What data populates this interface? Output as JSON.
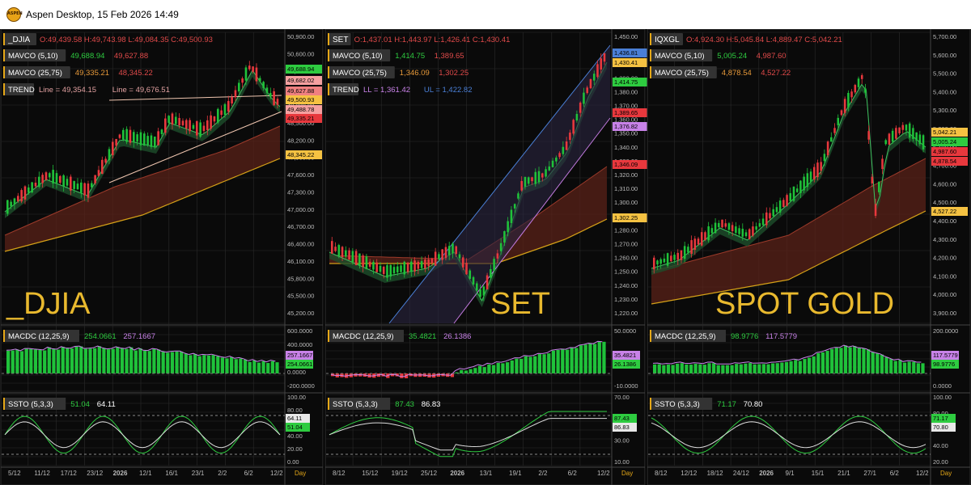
{
  "window": {
    "title": "Aspen Desktop, 15 Feb 2026 14:49",
    "logo_text": "ASPEN"
  },
  "colors": {
    "up": "#1fc23a",
    "down": "#e8383d",
    "fast": "#2ecc40",
    "slow": "#d9822b",
    "signal": "#c882e8",
    "grid": "#2b2b2b"
  },
  "x_axis_unit": "Day",
  "panels": [
    {
      "symbol": "_DJIA",
      "watermark": "_DJIA",
      "ohlc": "O:49,439.58 H:49,743.98 L:49,084.35 C:49,500.93",
      "indicators": [
        {
          "label": "MAVCO (5,10)",
          "v1": "49,688.94",
          "v2": "49,627.88"
        },
        {
          "label": "MAVCO (25,75)",
          "v1": "49,335.21",
          "v2": "48,345.22"
        },
        {
          "label": "TREND",
          "v1": "Line = 49,354.15",
          "v2": "Line = 49,676.51"
        }
      ],
      "price_ticks": [
        "50,900.00",
        "50,600.00",
        "50,300.00",
        "49,100.00",
        "48,800.00",
        "48,500.00",
        "48,200.00",
        "47,900.00",
        "47,600.00",
        "47,300.00",
        "47,000.00",
        "46,700.00",
        "46,400.00",
        "46,100.00",
        "45,800.00",
        "45,500.00",
        "45,200.00"
      ],
      "price_tags": [
        "49,688.94",
        "49,682.02",
        "49,627.88",
        "49,500.93",
        "49,488.78",
        "49,335.21",
        "48,345.22"
      ],
      "macd": {
        "label": "MACDC (12,25,9)",
        "v1": "254.0661",
        "v2": "257.1667",
        "ticks": [
          "600.0000",
          "400.0000",
          "200.0000",
          "0.0000",
          "-200.0000"
        ],
        "tags": [
          "257.1667",
          "254.0661"
        ]
      },
      "ssto": {
        "label": "SSTO (5,3,3)",
        "v1": "51.04",
        "v2": "64.11",
        "ticks": [
          "100.00",
          "80.00",
          "60.00",
          "40.00",
          "20.00",
          "0.00"
        ],
        "tags": [
          "64.11",
          "51.04"
        ]
      },
      "dates": [
        "5/12",
        "11/12",
        "17/12",
        "23/12",
        "2026",
        "12/1",
        "16/1",
        "23/1",
        "2/2",
        "6/2",
        "12/2"
      ]
    },
    {
      "symbol": "SET",
      "watermark": "SET",
      "ohlc": "O:1,437.01 H:1,443.97 L:1,426.41 C:1,430.41",
      "indicators": [
        {
          "label": "MAVCO (5,10)",
          "v1": "1,414.75",
          "v2": "1,389.65"
        },
        {
          "label": "MAVCO (25,75)",
          "v1": "1,346.09",
          "v2": "1,302.25"
        },
        {
          "label": "TREND",
          "v1": "LL = 1,361.42",
          "v2": "UL = 1,422.82"
        }
      ],
      "price_ticks": [
        "1,450.00",
        "1,440.00",
        "1,400.00",
        "1,390.00",
        "1,380.00",
        "1,370.00",
        "1,360.00",
        "1,350.00",
        "1,340.00",
        "1,330.00",
        "1,320.00",
        "1,310.00",
        "1,300.00",
        "1,290.00",
        "1,280.00",
        "1,270.00",
        "1,260.00",
        "1,250.00",
        "1,240.00",
        "1,230.00",
        "1,220.00"
      ],
      "price_tags": [
        "1,436.81",
        "1,430.41",
        "1,414.75",
        "1,389.65",
        "1,376.82",
        "1,346.09",
        "1,302.25"
      ],
      "macd": {
        "label": "MACDC (12,25,9)",
        "v1": "35.4821",
        "v2": "26.1386",
        "ticks": [
          "50.0000",
          "10.0000",
          "-10.0000"
        ],
        "tags": [
          "35.4821",
          "26.1386"
        ]
      },
      "ssto": {
        "label": "SSTO (5,3,3)",
        "v1": "87.43",
        "v2": "86.83",
        "ticks": [
          "70.00",
          "50.00",
          "30.00",
          "10.00"
        ],
        "tags": [
          "87.43",
          "86.83"
        ]
      },
      "dates": [
        "8/12",
        "15/12",
        "19/12",
        "25/12",
        "2026",
        "13/1",
        "19/1",
        "2/2",
        "6/2",
        "12/2"
      ]
    },
    {
      "symbol": "IQXGL",
      "watermark": "SPOT GOLD",
      "ohlc": "O:4,924.30 H:5,045.84 L:4,889.47 C:5,042.21",
      "indicators": [
        {
          "label": "MAVCO (5,10)",
          "v1": "5,005.24",
          "v2": "4,987.60"
        },
        {
          "label": "MAVCO (25,75)",
          "v1": "4,878.54",
          "v2": "4,527.22"
        }
      ],
      "price_ticks": [
        "5,700.00",
        "5,600.00",
        "5,500.00",
        "5,400.00",
        "5,300.00",
        "5,200.00",
        "5,100.00",
        "4,700.00",
        "4,600.00",
        "4,500.00",
        "4,400.00",
        "4,300.00",
        "4,200.00",
        "4,100.00",
        "4,000.00",
        "3,900.00"
      ],
      "price_tags": [
        "5,042.21",
        "5,005.24",
        "4,987.60",
        "4,878.54",
        "4,527.22"
      ],
      "macd": {
        "label": "MACDC (12,25,9)",
        "v1": "98.9776",
        "v2": "117.5779",
        "ticks": [
          "200.0000",
          "100.0000",
          "0.0000"
        ],
        "tags": [
          "117.5779",
          "98.9776"
        ]
      },
      "ssto": {
        "label": "SSTO (5,3,3)",
        "v1": "71.17",
        "v2": "70.80",
        "ticks": [
          "100.00",
          "80.00",
          "60.00",
          "40.00",
          "20.00"
        ],
        "tags": [
          "71.17",
          "70.80"
        ]
      },
      "dates": [
        "8/12",
        "12/12",
        "18/12",
        "24/12",
        "2026",
        "9/1",
        "15/1",
        "21/1",
        "27/1",
        "6/2",
        "12/2"
      ]
    }
  ]
}
